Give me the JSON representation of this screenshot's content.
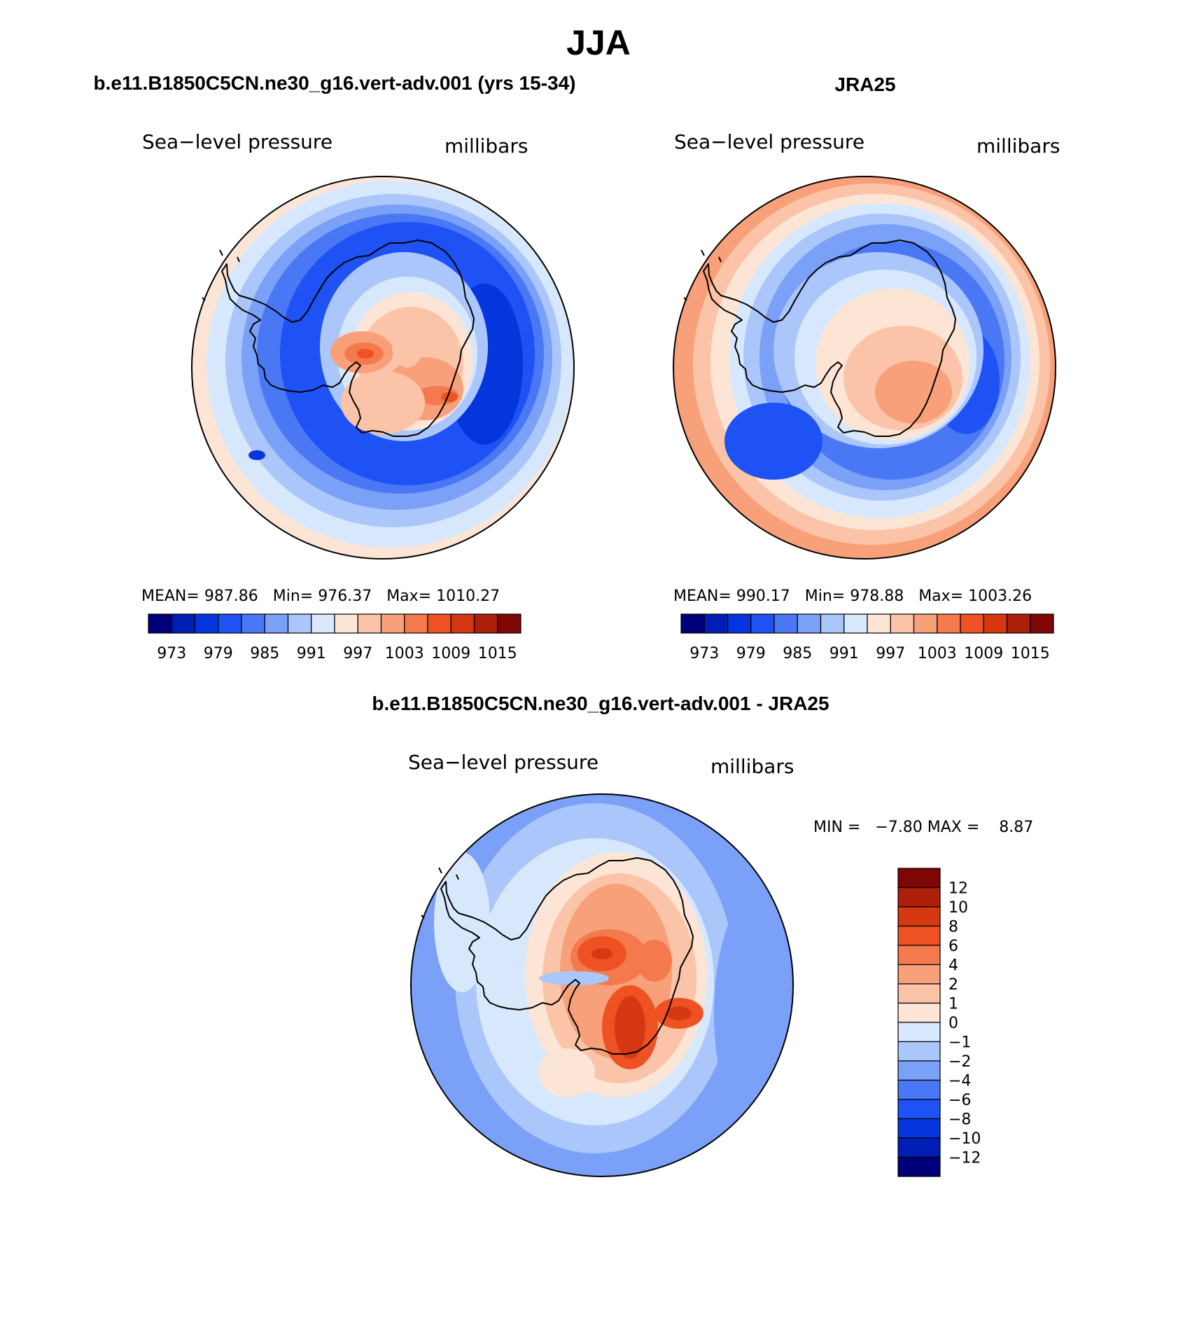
{
  "figure": {
    "title": "JJA",
    "diff_title": "b.e11.B1850C5CN.ne30_g16.vert-adv.001 - JRA25"
  },
  "panels": [
    {
      "id": "model",
      "heading": "b.e11.B1850C5CN.ne30_g16.vert-adv.001 (yrs 15-34)",
      "variable": "Sea−level pressure",
      "units": "millibars",
      "stats": "MEAN= 987.86   Min= 976.37   Max= 1010.27",
      "mean": 987.86,
      "min": 976.37,
      "max": 1010.27
    },
    {
      "id": "obs",
      "heading": "JRA25",
      "variable": "Sea−level pressure",
      "units": "millibars",
      "stats": "MEAN= 990.17   Min= 978.88   Max= 1003.26",
      "mean": 990.17,
      "min": 978.88,
      "max": 1003.26
    },
    {
      "id": "diff",
      "heading": "",
      "variable": "Sea−level pressure",
      "units": "millibars",
      "stats": "MIN =   −7.80 MAX =    8.87",
      "min": -7.8,
      "max": 8.87
    }
  ],
  "colorbars": {
    "abs": {
      "orientation": "horizontal",
      "colors": [
        "#00007a",
        "#001db4",
        "#0535dc",
        "#1e52f5",
        "#4a78f5",
        "#7aa0f7",
        "#aac6fa",
        "#d8e8fc",
        "#fde5d6",
        "#fbc4a8",
        "#f7a07a",
        "#f47a4e",
        "#ee5222",
        "#d63812",
        "#ac200a",
        "#7e0604"
      ],
      "tick_labels": [
        "973",
        "979",
        "985",
        "991",
        "997",
        "1003",
        "1009",
        "1015"
      ]
    },
    "diff": {
      "orientation": "vertical",
      "colors": [
        "#7e0604",
        "#ac200a",
        "#d63812",
        "#ee5222",
        "#f47a4e",
        "#f7a07a",
        "#fbc4a8",
        "#fde5d6",
        "#d8e8fc",
        "#aac6fa",
        "#7aa0f7",
        "#4a78f5",
        "#1e52f5",
        "#0535dc",
        "#001db4",
        "#00007a"
      ],
      "tick_labels": [
        "12",
        "10",
        "8",
        "6",
        "4",
        "2",
        "1",
        "0",
        "−1",
        "−2",
        "−4",
        "−6",
        "−8",
        "−10",
        "−12"
      ]
    }
  },
  "maps": {
    "model": {
      "bands": [
        {
          "value": 997,
          "color": "#fde5d6"
        },
        {
          "value": 994,
          "color": "#d8e8fc"
        },
        {
          "value": 991,
          "color": "#aac6fa"
        },
        {
          "value": 988,
          "color": "#7aa0f7"
        },
        {
          "value": 985,
          "color": "#4a78f5"
        },
        {
          "value": 982,
          "color": "#1e52f5"
        },
        {
          "value": 979,
          "color": "#0535dc"
        }
      ],
      "blobs": [
        {
          "value": 991,
          "color": "#aac6fa"
        },
        {
          "value": 994,
          "color": "#d8e8fc"
        },
        {
          "value": 997,
          "color": "#fde5d6"
        },
        {
          "value": 1000,
          "color": "#fbc4a8"
        },
        {
          "value": 1003,
          "color": "#f7a07a"
        },
        {
          "value": 1006,
          "color": "#f47a4e"
        },
        {
          "value": 1009,
          "color": "#ee5222"
        }
      ]
    },
    "obs": {
      "bands": [
        {
          "value": 1003,
          "color": "#f7a07a"
        },
        {
          "value": 1000,
          "color": "#fbc4a8"
        },
        {
          "value": 997,
          "color": "#fde5d6"
        },
        {
          "value": 994,
          "color": "#d8e8fc"
        },
        {
          "value": 991,
          "color": "#aac6fa"
        },
        {
          "value": 988,
          "color": "#7aa0f7"
        },
        {
          "value": 985,
          "color": "#4a78f5"
        },
        {
          "value": 982,
          "color": "#1e52f5"
        }
      ],
      "blobs": [
        {
          "value": 991,
          "color": "#aac6fa"
        },
        {
          "value": 994,
          "color": "#d8e8fc"
        },
        {
          "value": 997,
          "color": "#fde5d6"
        },
        {
          "value": 1000,
          "color": "#fbc4a8"
        },
        {
          "value": 1003,
          "color": "#f7a07a"
        }
      ]
    },
    "diff": {
      "bands": [
        {
          "value": -4,
          "color": "#7aa0f7"
        },
        {
          "value": -2,
          "color": "#aac6fa"
        },
        {
          "value": -1,
          "color": "#d8e8fc"
        }
      ],
      "blobs": [
        {
          "value": 0,
          "color": "#fde5d6"
        },
        {
          "value": 1,
          "color": "#fbc4a8"
        },
        {
          "value": 2,
          "color": "#f7a07a"
        },
        {
          "value": 4,
          "color": "#f47a4e"
        },
        {
          "value": 6,
          "color": "#ee5222"
        },
        {
          "value": 8,
          "color": "#d63812"
        }
      ]
    }
  }
}
